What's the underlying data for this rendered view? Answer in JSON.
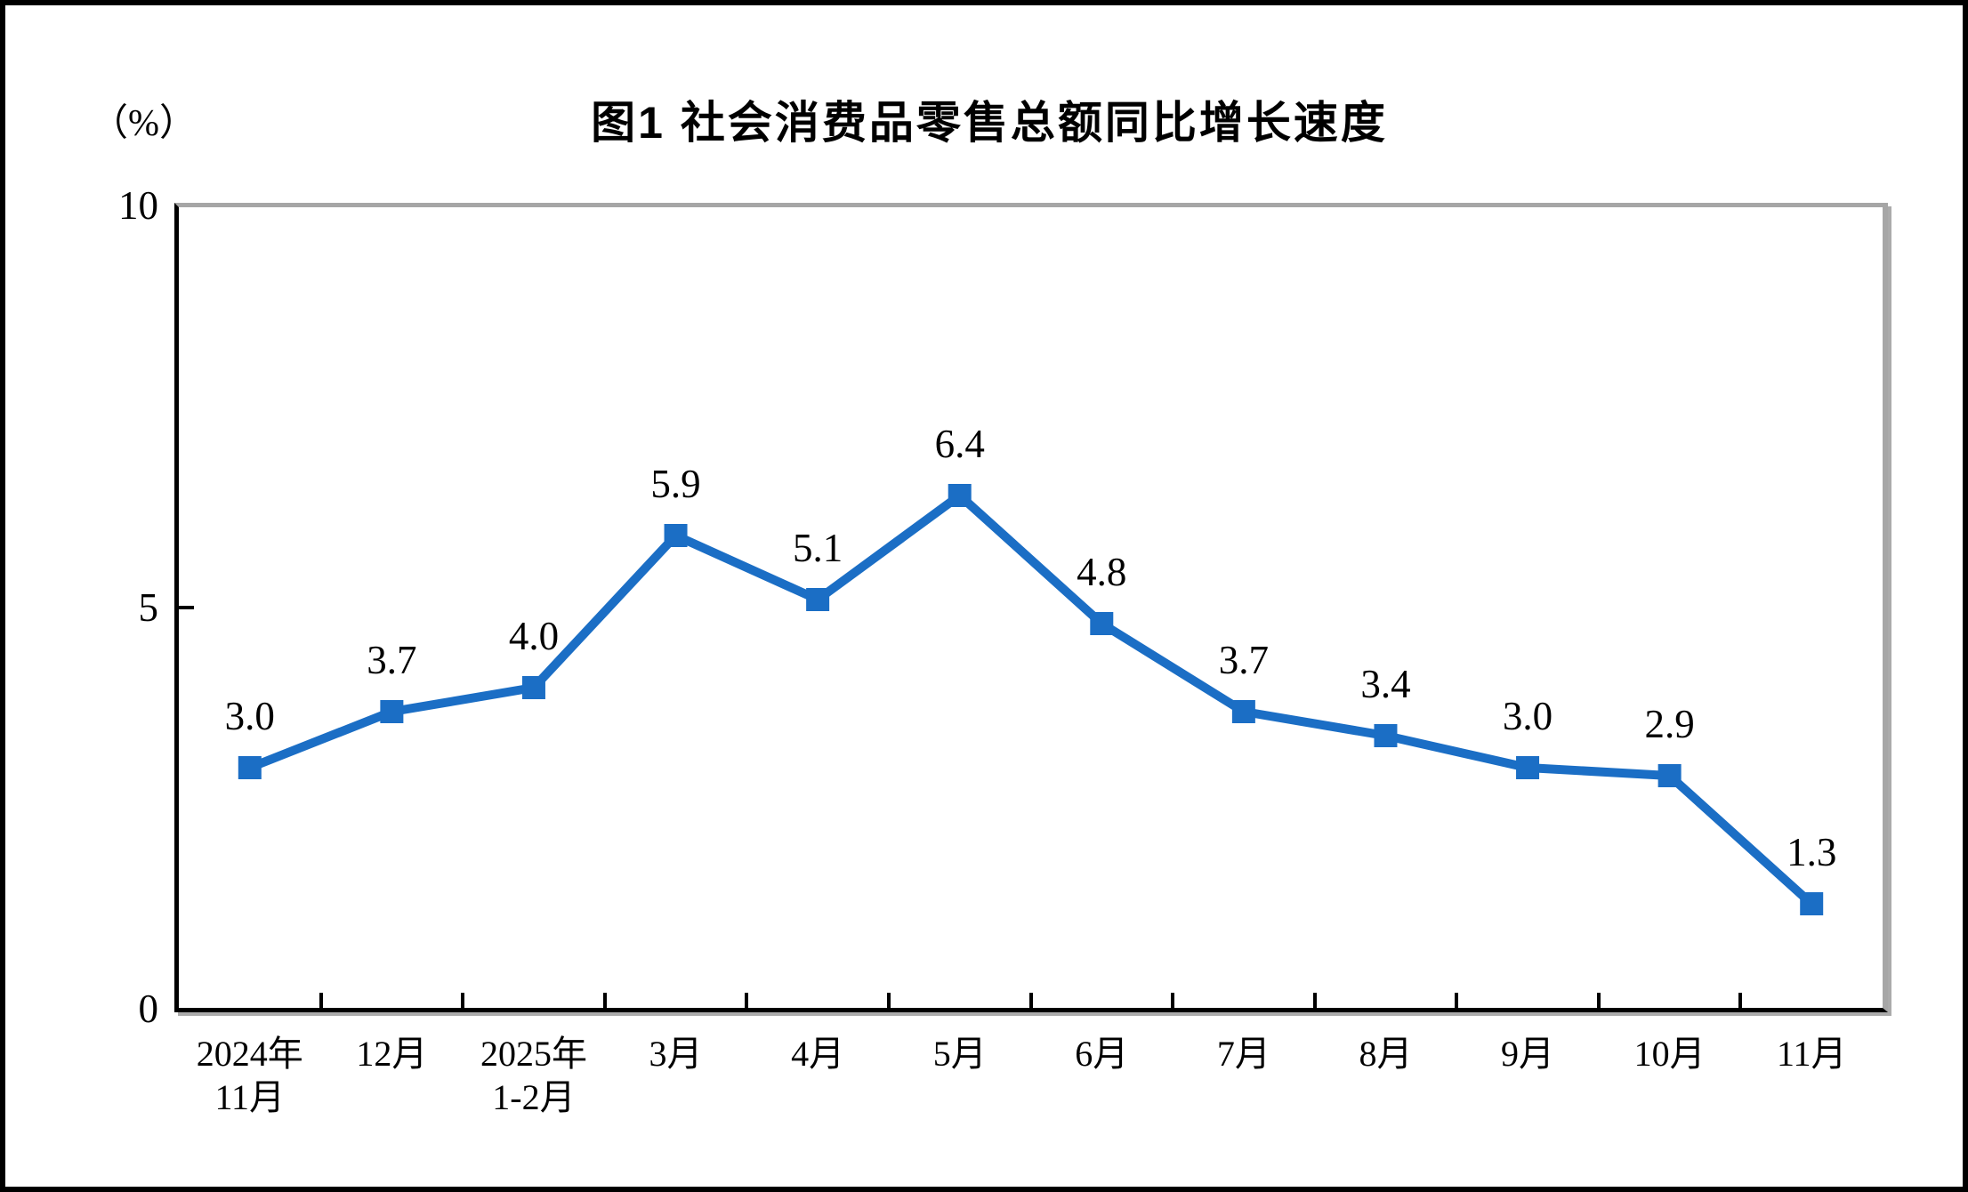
{
  "page": {
    "background": "#FFFFFF",
    "frame_color": "#000000"
  },
  "chart_data": {
    "type": "line",
    "title": "图1 社会消费品零售总额同比增长速度",
    "unit_label": "（%）",
    "categories": [
      "2024年\n11月",
      "12月",
      "2025年\n1-2月",
      "3月",
      "4月",
      "5月",
      "6月",
      "7月",
      "8月",
      "9月",
      "10月",
      "11月"
    ],
    "values": [
      3.0,
      3.7,
      4.0,
      5.9,
      5.1,
      6.4,
      4.8,
      3.7,
      3.4,
      3.0,
      2.9,
      1.3
    ],
    "point_labels": [
      "3.0",
      "3.7",
      "4.0",
      "5.9",
      "5.1",
      "6.4",
      "4.8",
      "3.7",
      "3.4",
      "3.0",
      "2.9",
      "1.3"
    ],
    "xlabel": "",
    "ylabel": "（%）",
    "ylim": [
      0,
      10
    ],
    "y_ticks": [
      {
        "value": 10,
        "label": "10"
      },
      {
        "value": 5,
        "label": "5"
      },
      {
        "value": 0,
        "label": "0"
      }
    ],
    "grid": false,
    "legend": "none",
    "line_color": "#1B6EC5",
    "marker": "square",
    "marker_color": "#1B6EC5",
    "axis_color": "#000000",
    "plot_frame_color": "#A6A6A6"
  }
}
